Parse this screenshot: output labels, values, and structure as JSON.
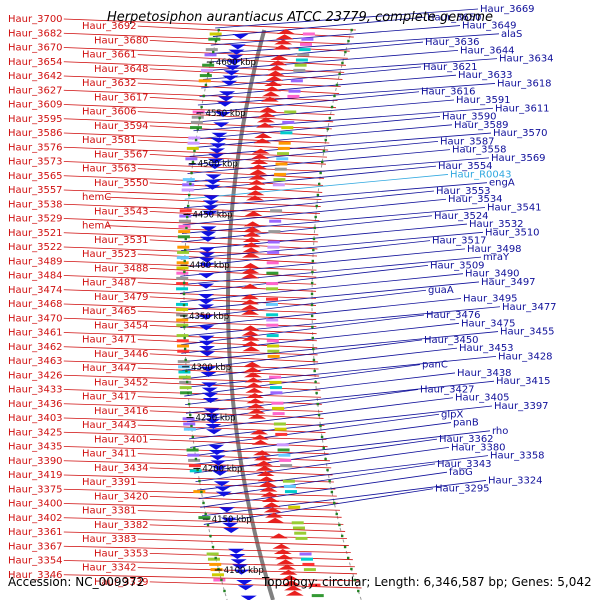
{
  "title": "Herpetosiphon aurantiacus ATCC 23779, complete genome",
  "footer": {
    "accession": "Accession: NC_009972",
    "summary": "Topology: circular; Length: 6,346,587 bp; Genes: 5,042"
  },
  "colors": {
    "reverse_strand": "#e8201e",
    "forward_strand": "#1010e0",
    "left_label": "#d01010",
    "right_label": "#10109a",
    "rna_label": "#30a8e0",
    "backbone": "#808080",
    "tick_dots": "#208020"
  },
  "positions_kbp": [
    "4600 kbp",
    "4550 kbp",
    "4500 kbp",
    "4450 kbp",
    "4400 kbp",
    "4350 kbp",
    "4300 kbp",
    "4250 kbp",
    "4200 kbp",
    "4150 kbp",
    "4100 kbp"
  ],
  "left_labels": [
    "Haur_3700",
    "Haur_3692",
    "Haur_3682",
    "Haur_3680",
    "Haur_3670",
    "Haur_3661",
    "Haur_3654",
    "Haur_3648",
    "Haur_3642",
    "Haur_3632",
    "Haur_3627",
    "Haur_3617",
    "Haur_3609",
    "Haur_3606",
    "Haur_3595",
    "Haur_3594",
    "Haur_3586",
    "Haur_3581",
    "Haur_3576",
    "Haur_3567",
    "Haur_3573",
    "Haur_3563",
    "Haur_3565",
    "Haur_3550",
    "Haur_3557",
    "hemC",
    "Haur_3538",
    "Haur_3543",
    "Haur_3529",
    "hemA",
    "Haur_3521",
    "Haur_3531",
    "Haur_3522",
    "Haur_3523",
    "Haur_3489",
    "Haur_3488",
    "Haur_3484",
    "Haur_3487",
    "Haur_3474",
    "Haur_3479",
    "Haur_3468",
    "Haur_3465",
    "Haur_3470",
    "Haur_3454",
    "Haur_3461",
    "Haur_3471",
    "Haur_3462",
    "Haur_3446",
    "Haur_3463",
    "Haur_3447",
    "Haur_3426",
    "Haur_3452",
    "Haur_3433",
    "Haur_3417",
    "Haur_3436",
    "Haur_3416",
    "Haur_3403",
    "Haur_3443",
    "Haur_3425",
    "Haur_3401",
    "Haur_3435",
    "Haur_3411",
    "Haur_3390",
    "Haur_3434",
    "Haur_3419",
    "Haur_3391",
    "Haur_3375",
    "Haur_3420",
    "Haur_3400",
    "Haur_3381",
    "Haur_3402",
    "Haur_3382",
    "Haur_3361",
    "Haur_3383",
    "Haur_3367",
    "Haur_3353",
    "Haur_3354",
    "Haur_3342",
    "Haur_3346",
    "Haur_3339"
  ],
  "right_labels": [
    "Haur_3669",
    "Haur_3650",
    "Haur_3649",
    "alaS",
    "Haur_3636",
    "Haur_3644",
    "Haur_3634",
    "Haur_3621",
    "Haur_3633",
    "Haur_3618",
    "Haur_3616",
    "Haur_3591",
    "Haur_3611",
    "Haur_3590",
    "Haur_3589",
    "Haur_3570",
    "Haur_3587",
    "Haur_3558",
    "Haur_3569",
    "Haur_3554",
    "Haur_R0043",
    "engA",
    "Haur_3553",
    "Haur_3534",
    "Haur_3541",
    "Haur_3524",
    "Haur_3532",
    "Haur_3510",
    "Haur_3517",
    "Haur_3498",
    "mraY",
    "Haur_3509",
    "Haur_3490",
    "Haur_3497",
    "guaA",
    "Haur_3495",
    "Haur_3477",
    "Haur_3476",
    "Haur_3475",
    "Haur_3455",
    "Haur_3450",
    "Haur_3453",
    "Haur_3428",
    "panC",
    "Haur_3438",
    "Haur_3415",
    "Haur_3427",
    "Haur_3405",
    "Haur_3397",
    "glpX",
    "panB",
    "rho",
    "Haur_3362",
    "Haur_3380",
    "Haur_3358",
    "Haur_3343",
    "fabG",
    "Haur_3324",
    "Haur_3295"
  ]
}
